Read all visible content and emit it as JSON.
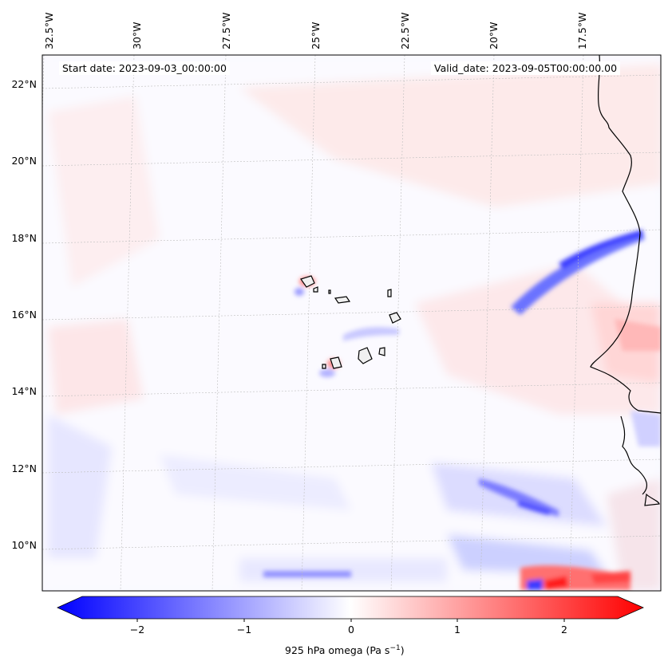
{
  "map": {
    "start_label": "Start date: 2023-09-03_00:00:00",
    "valid_label": "Valid_date: 2023-09-05T00:00:00.00",
    "lon_labels": [
      "32.5°W",
      "30°W",
      "27.5°W",
      "25°W",
      "22.5°W",
      "20°W",
      "17.5°W"
    ],
    "lat_labels": [
      "22°N",
      "20°N",
      "18°N",
      "16°N",
      "14°N",
      "12°N",
      "10°N"
    ],
    "variable": "925 hPa omega"
  },
  "colorbar": {
    "label": "925 hPa omega (Pa s",
    "label_exp": "−1",
    "label_close": ")",
    "ticks": [
      "−2",
      "−1",
      "0",
      "1",
      "2"
    ],
    "min": -2.5,
    "max": 2.5,
    "neg_color": "#0000ff",
    "pos_color": "#ff0000"
  }
}
